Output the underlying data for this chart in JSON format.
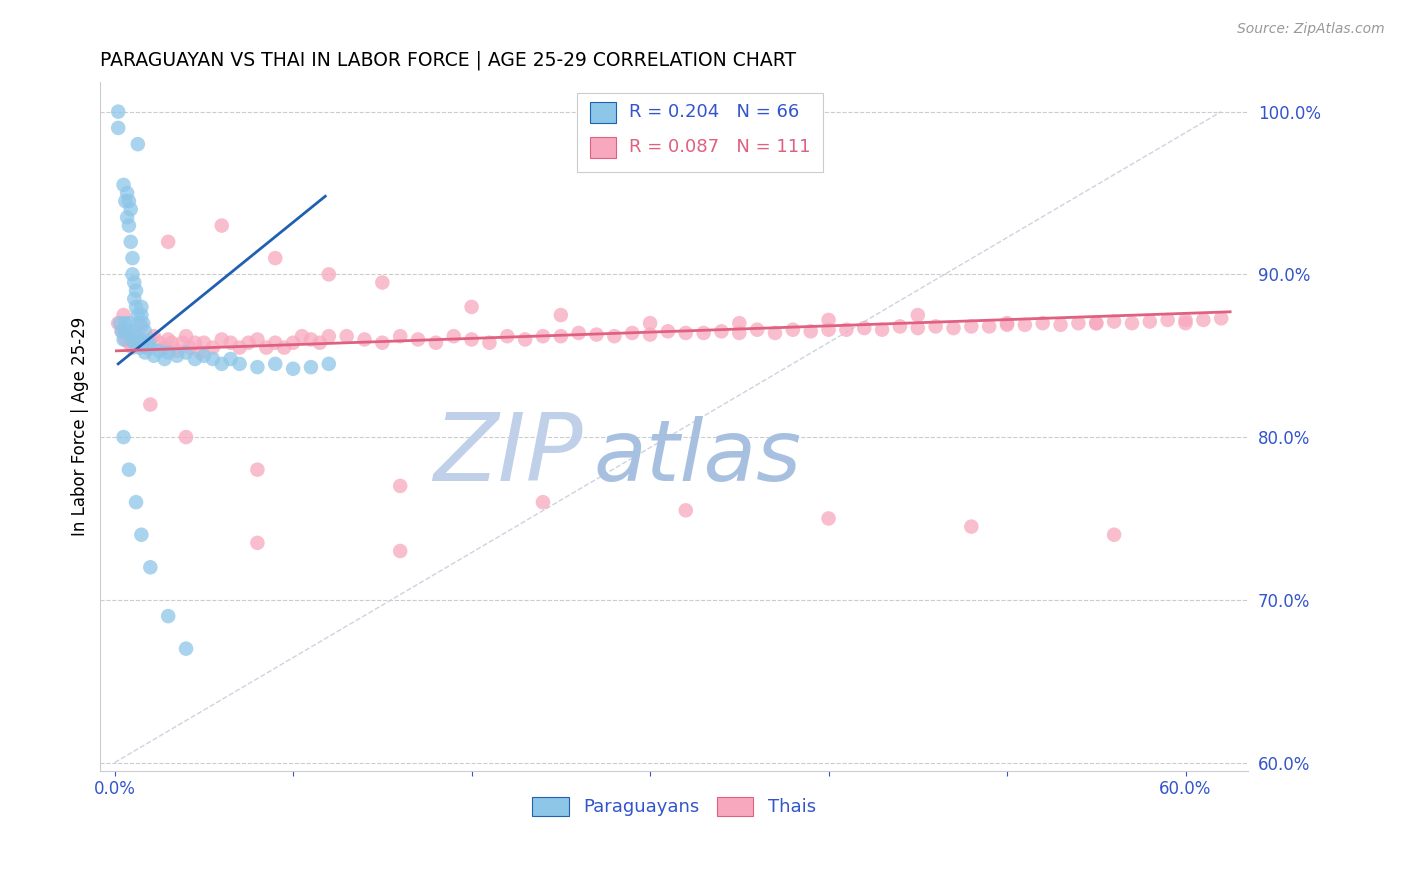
{
  "title": "PARAGUAYAN VS THAI IN LABOR FORCE | AGE 25-29 CORRELATION CHART",
  "source": "Source: ZipAtlas.com",
  "ylabel": "In Labor Force | Age 25-29",
  "legend_label1": "Paraguayans",
  "legend_label2": "Thais",
  "r1": 0.204,
  "n1": 66,
  "r2": 0.087,
  "n2": 111,
  "color_blue": "#8ec6e8",
  "color_blue_line": "#2060b0",
  "color_pink": "#f8a8be",
  "color_pink_line": "#e06080",
  "color_blue_text": "#3355cc",
  "color_pink_text": "#e06080",
  "watermark_zip_color": "#c8d8f0",
  "watermark_atlas_color": "#b0c8e8",
  "xlim_min": -0.008,
  "xlim_max": 0.635,
  "ylim_min": 0.595,
  "ylim_max": 1.018,
  "ytick_vals": [
    0.6,
    0.7,
    0.8,
    0.9,
    1.0
  ],
  "ytick_labels_right": [
    "60.0%",
    "70.0%",
    "80.0%",
    "90.0%",
    "100.0%"
  ],
  "xtick_positions": [
    0.0,
    0.1,
    0.2,
    0.3,
    0.4,
    0.5,
    0.6
  ],
  "xtick_labels": [
    "0.0%",
    "",
    "",
    "",
    "",
    "",
    "60.0%"
  ],
  "blue_line_x": [
    0.002,
    0.118
  ],
  "blue_line_y": [
    0.845,
    0.948
  ],
  "pink_line_x": [
    0.001,
    0.625
  ],
  "pink_line_y": [
    0.853,
    0.877
  ],
  "diag_line_x": [
    0.0,
    0.62
  ],
  "diag_line_y": [
    0.6,
    1.0
  ],
  "paraguayan_x": [
    0.002,
    0.002,
    0.003,
    0.004,
    0.004,
    0.005,
    0.005,
    0.006,
    0.006,
    0.006,
    0.007,
    0.007,
    0.007,
    0.008,
    0.008,
    0.009,
    0.009,
    0.01,
    0.01,
    0.01,
    0.01,
    0.01,
    0.012,
    0.012,
    0.013,
    0.014,
    0.015,
    0.015,
    0.016,
    0.017,
    0.018,
    0.019,
    0.02,
    0.02,
    0.021,
    0.022,
    0.023,
    0.024,
    0.025,
    0.026,
    0.027,
    0.028,
    0.03,
    0.03,
    0.032,
    0.035,
    0.04,
    0.04,
    0.045,
    0.05,
    0.055,
    0.06,
    0.065,
    0.07,
    0.08,
    0.085,
    0.09,
    0.1,
    0.105,
    0.115,
    0.12,
    0.005,
    0.008,
    0.012,
    0.018,
    0.025
  ],
  "paraguayan_y": [
    0.99,
    1.0,
    0.96,
    0.95,
    0.97,
    0.94,
    0.93,
    0.92,
    0.91,
    0.9,
    0.89,
    0.88,
    0.87,
    0.9,
    0.86,
    0.88,
    0.87,
    0.88,
    0.87,
    0.86,
    0.85,
    0.89,
    0.87,
    0.86,
    0.88,
    0.86,
    0.85,
    0.87,
    0.86,
    0.85,
    0.855,
    0.865,
    0.86,
    0.87,
    0.855,
    0.86,
    0.87,
    0.855,
    0.86,
    0.855,
    0.85,
    0.855,
    0.85,
    0.86,
    0.855,
    0.85,
    0.855,
    0.85,
    0.855,
    0.86,
    0.855,
    0.85,
    0.855,
    0.85,
    0.848,
    0.853,
    0.855,
    0.848,
    0.852,
    0.855,
    0.858,
    0.77,
    0.76,
    0.75,
    0.72,
    0.7
  ],
  "thai_x": [
    0.002,
    0.004,
    0.006,
    0.008,
    0.01,
    0.012,
    0.015,
    0.018,
    0.02,
    0.022,
    0.025,
    0.028,
    0.03,
    0.032,
    0.035,
    0.038,
    0.04,
    0.042,
    0.045,
    0.048,
    0.05,
    0.055,
    0.06,
    0.065,
    0.07,
    0.075,
    0.08,
    0.085,
    0.09,
    0.095,
    0.1,
    0.105,
    0.11,
    0.115,
    0.12,
    0.125,
    0.13,
    0.135,
    0.14,
    0.145,
    0.15,
    0.155,
    0.16,
    0.165,
    0.17,
    0.175,
    0.18,
    0.185,
    0.19,
    0.195,
    0.2,
    0.205,
    0.21,
    0.22,
    0.23,
    0.24,
    0.25,
    0.26,
    0.27,
    0.28,
    0.29,
    0.3,
    0.31,
    0.32,
    0.33,
    0.34,
    0.35,
    0.36,
    0.37,
    0.38,
    0.39,
    0.4,
    0.41,
    0.42,
    0.43,
    0.44,
    0.45,
    0.46,
    0.47,
    0.48,
    0.49,
    0.5,
    0.51,
    0.52,
    0.53,
    0.54,
    0.55,
    0.56,
    0.57,
    0.58,
    0.59,
    0.6,
    0.61,
    0.62,
    0.015,
    0.03,
    0.06,
    0.09,
    0.12,
    0.18,
    0.25,
    0.35,
    0.45,
    0.55,
    0.08,
    0.15,
    0.22,
    0.3,
    0.4,
    0.5,
    0.6
  ],
  "thai_y": [
    0.855,
    0.86,
    0.85,
    0.87,
    0.855,
    0.86,
    0.865,
    0.858,
    0.852,
    0.86,
    0.856,
    0.862,
    0.858,
    0.854,
    0.86,
    0.856,
    0.862,
    0.858,
    0.855,
    0.862,
    0.855,
    0.86,
    0.858,
    0.862,
    0.856,
    0.86,
    0.855,
    0.862,
    0.858,
    0.855,
    0.86,
    0.856,
    0.862,
    0.858,
    0.862,
    0.858,
    0.855,
    0.862,
    0.856,
    0.862,
    0.858,
    0.862,
    0.855,
    0.86,
    0.856,
    0.862,
    0.858,
    0.862,
    0.858,
    0.86,
    0.858,
    0.862,
    0.858,
    0.862,
    0.86,
    0.858,
    0.862,
    0.858,
    0.862,
    0.858,
    0.862,
    0.862,
    0.864,
    0.862,
    0.864,
    0.862,
    0.864,
    0.865,
    0.863,
    0.865,
    0.864,
    0.865,
    0.864,
    0.866,
    0.865,
    0.866,
    0.865,
    0.866,
    0.866,
    0.867,
    0.867,
    0.866,
    0.867,
    0.867,
    0.868,
    0.868,
    0.869,
    0.869,
    0.87,
    0.87,
    0.87,
    0.872,
    0.872,
    0.872,
    0.93,
    0.91,
    0.9,
    0.895,
    0.88,
    0.875,
    0.87,
    0.87,
    0.875,
    0.868,
    0.82,
    0.81,
    0.8,
    0.79,
    0.78,
    0.775,
    0.86
  ]
}
